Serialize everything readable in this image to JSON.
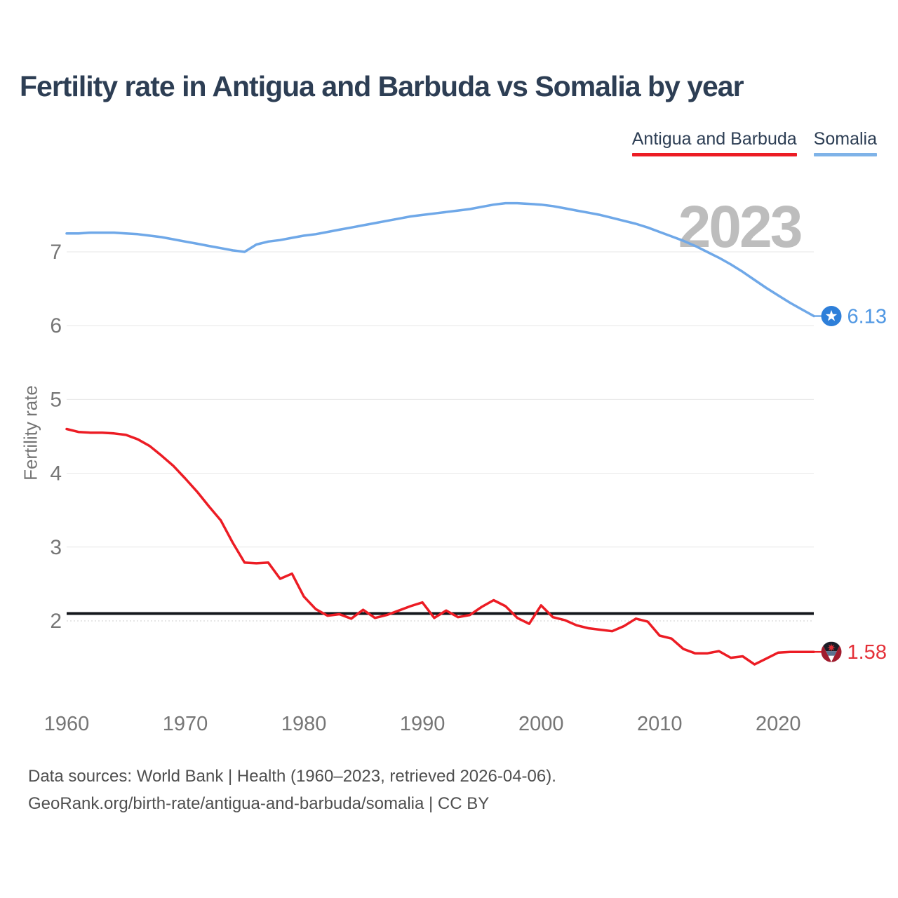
{
  "title": "Fertility rate in Antigua and Barbuda vs Somalia by year",
  "watermark": "2023",
  "y_axis_label": "Fertility rate",
  "legend": [
    {
      "label": "Antigua and Barbuda",
      "color": "#ec1c24"
    },
    {
      "label": "Somalia",
      "color": "#7fb3e8"
    }
  ],
  "footer": {
    "line1": "Data sources: World Bank | Health (1960–2023, retrieved 2026-04-06).",
    "line2": "GeoRank.org/birth-rate/antigua-and-barbuda/somalia | CC BY"
  },
  "chart_data": {
    "type": "line",
    "title": "Fertility rate in Antigua and Barbuda vs Somalia by year",
    "xlabel": "",
    "ylabel": "Fertility rate",
    "xlim": [
      1960,
      2023
    ],
    "ylim": [
      1.3,
      7.8
    ],
    "x_ticks": [
      1960,
      1970,
      1980,
      1990,
      2000,
      2010,
      2020
    ],
    "y_ticks": [
      2,
      3,
      4,
      5,
      6,
      7
    ],
    "grid": "horizontal",
    "legend_position": "top-right",
    "reference_line": {
      "value": 2.1,
      "color": "#14171c"
    },
    "x_start": 1960,
    "series": [
      {
        "name": "Somalia",
        "color": "#6fa8e8",
        "label_color": "#4f97e3",
        "flag": "somalia",
        "end_label": "6.13",
        "values": [
          7.25,
          7.25,
          7.26,
          7.26,
          7.26,
          7.25,
          7.24,
          7.22,
          7.2,
          7.17,
          7.14,
          7.11,
          7.08,
          7.05,
          7.02,
          7.0,
          7.1,
          7.14,
          7.16,
          7.19,
          7.22,
          7.24,
          7.27,
          7.3,
          7.33,
          7.36,
          7.39,
          7.42,
          7.45,
          7.48,
          7.5,
          7.52,
          7.54,
          7.56,
          7.58,
          7.61,
          7.64,
          7.66,
          7.66,
          7.65,
          7.64,
          7.62,
          7.59,
          7.56,
          7.53,
          7.5,
          7.46,
          7.42,
          7.38,
          7.33,
          7.27,
          7.21,
          7.15,
          7.08,
          7.0,
          6.92,
          6.83,
          6.73,
          6.62,
          6.51,
          6.41,
          6.31,
          6.22,
          6.13
        ]
      },
      {
        "name": "Antigua and Barbuda",
        "color": "#ec1c24",
        "label_color": "#e43038",
        "flag": "antigua-and-barbuda",
        "end_label": "1.58",
        "values": [
          4.6,
          4.56,
          4.55,
          4.55,
          4.54,
          4.52,
          4.46,
          4.37,
          4.24,
          4.1,
          3.93,
          3.75,
          3.55,
          3.36,
          3.06,
          2.79,
          2.78,
          2.79,
          2.57,
          2.64,
          2.33,
          2.16,
          2.07,
          2.09,
          2.03,
          2.15,
          2.04,
          2.08,
          2.14,
          2.2,
          2.25,
          2.04,
          2.14,
          2.05,
          2.08,
          2.19,
          2.28,
          2.2,
          2.04,
          1.96,
          2.21,
          2.05,
          2.01,
          1.94,
          1.9,
          1.88,
          1.86,
          1.93,
          2.03,
          1.99,
          1.8,
          1.76,
          1.62,
          1.56,
          1.56,
          1.59,
          1.5,
          1.52,
          1.41,
          1.49,
          1.57,
          1.58,
          1.58,
          1.58
        ]
      }
    ]
  }
}
